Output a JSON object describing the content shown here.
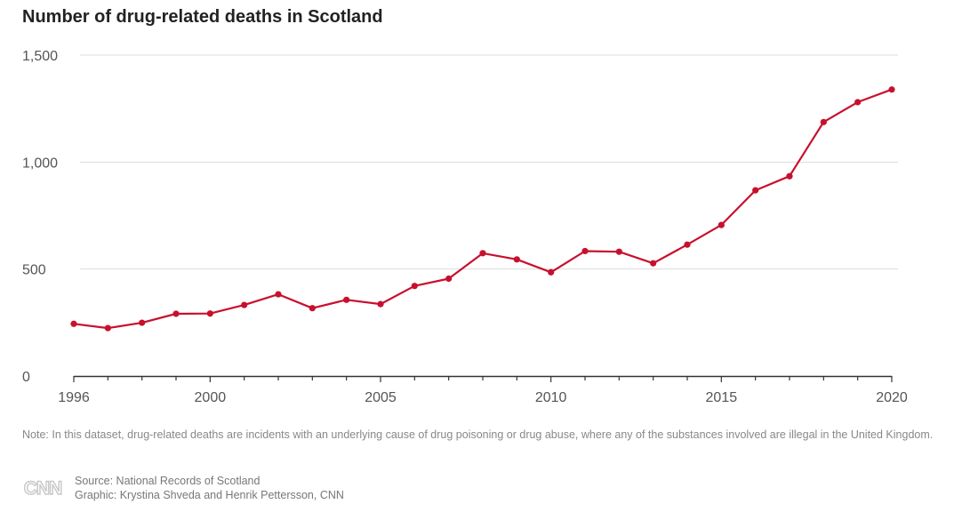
{
  "header": {
    "title": "Number of drug-related deaths in Scotland"
  },
  "colors": {
    "line": "#c8102e",
    "grid": "#dcdcdc",
    "axis": "#333333",
    "tick_label": "#555555"
  },
  "chart_data": {
    "type": "line",
    "title": "Number of drug-related deaths in Scotland",
    "xlabel": "",
    "ylabel": "",
    "x": [
      1996,
      1997,
      1998,
      1999,
      2000,
      2001,
      2002,
      2003,
      2004,
      2005,
      2006,
      2007,
      2008,
      2009,
      2010,
      2011,
      2012,
      2013,
      2014,
      2015,
      2016,
      2017,
      2018,
      2019,
      2020
    ],
    "series": [
      {
        "values": [
          244,
          224,
          249,
          291,
          292,
          332,
          382,
          317,
          356,
          336,
          421,
          455,
          574,
          545,
          485,
          584,
          581,
          527,
          614,
          706,
          868,
          934,
          1187,
          1280,
          1339
        ]
      }
    ],
    "xlim": [
      1996,
      2020
    ],
    "ylim": [
      0,
      1500
    ],
    "x_ticks": [
      1996,
      2000,
      2005,
      2010,
      2015,
      2020
    ],
    "x_tick_labels": [
      "1996",
      "2000",
      "2005",
      "2010",
      "2015",
      "2020"
    ],
    "y_ticks": [
      0,
      500,
      1000,
      1500
    ],
    "y_tick_labels": [
      "0",
      "500",
      "1,000",
      "1,500"
    ],
    "grid": true,
    "legend": "none"
  },
  "footer": {
    "note": "Note: In this dataset, drug-related deaths are incidents with an underlying cause of drug poisoning or drug abuse, where any of the substances involved are illegal in the United Kingdom.",
    "source": "Source: National Records of Scotland",
    "graphic": "Graphic: Krystina Shveda and Henrik Pettersson, CNN",
    "logo_text": "CNN"
  }
}
